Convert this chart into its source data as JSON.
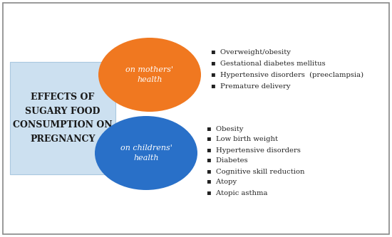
{
  "title_lines": [
    "EFFECTS OF",
    "SUGARY FOOD",
    "CONSUMPTION ON",
    "PREGNANCY"
  ],
  "box_color": "#cce0f0",
  "box_text_color": "#1a1a1a",
  "orange_circle_color": "#f07820",
  "blue_circle_color": "#2970c8",
  "circle_text_color": "#ffffff",
  "top_circle_label": "on mothers'\nhealth",
  "bottom_circle_label": "on childrens'\nhealth",
  "top_bullets": [
    "Overweight/obesity",
    "Gestational diabetes mellitus",
    "Hypertensive disorders  (preeclampsia)",
    "Premature delivery"
  ],
  "bottom_bullets": [
    "Obesity",
    "Low birth weight",
    "Hypertensive disorders",
    "Diabetes",
    "Cognitive skill reduction",
    "Atopy",
    "Atopic asthma"
  ],
  "background_color": "#ffffff",
  "border_color": "#888888",
  "bullet_char": "▪"
}
